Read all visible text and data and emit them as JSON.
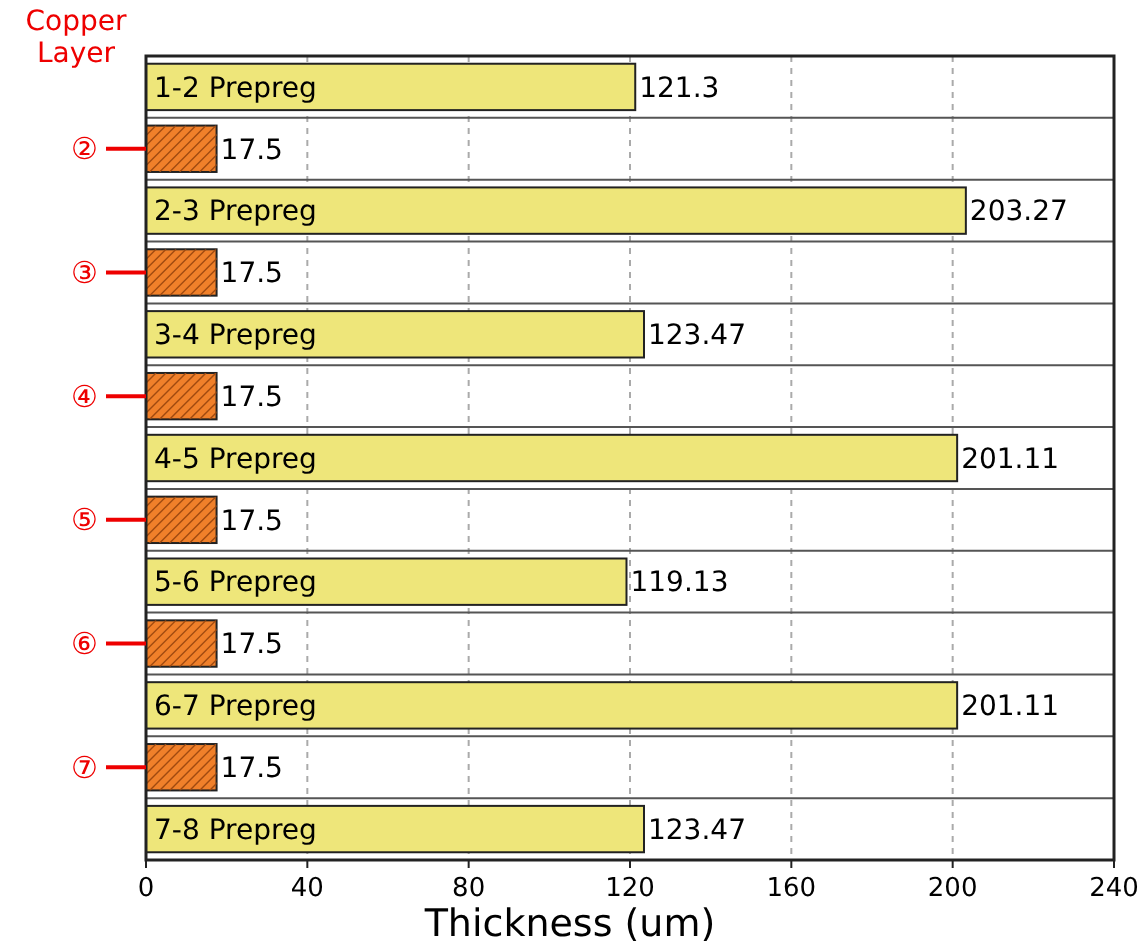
{
  "chart_data": {
    "type": "bar",
    "orientation": "horizontal",
    "xlabel": "Thickness (um)",
    "ylabel": "Copper Layer",
    "categories": [
      "1-2 Prepreg",
      "②",
      "2-3 Prepreg",
      "③",
      "3-4 Prepreg",
      "④",
      "4-5 Prepreg",
      "⑤",
      "5-6 Prepreg",
      "⑥",
      "6-7 Prepreg",
      "⑦",
      "7-8 Prepreg"
    ],
    "values": [
      121.3,
      17.5,
      203.27,
      17.5,
      123.47,
      17.5,
      201.11,
      17.5,
      119.13,
      17.5,
      201.11,
      17.5,
      123.47
    ],
    "colors": [
      "#eee67a",
      "#f0802a",
      "#eee67a",
      "#f0802a",
      "#eee67a",
      "#f0802a",
      "#eee67a",
      "#f0802a",
      "#eee67a",
      "#f0802a",
      "#eee67a",
      "#f0802a",
      "#eee67a"
    ],
    "xlim": [
      0,
      240
    ],
    "xticks": [
      0,
      40,
      80,
      120,
      160,
      200,
      240
    ],
    "grid": true,
    "data_labels": true
  }
}
